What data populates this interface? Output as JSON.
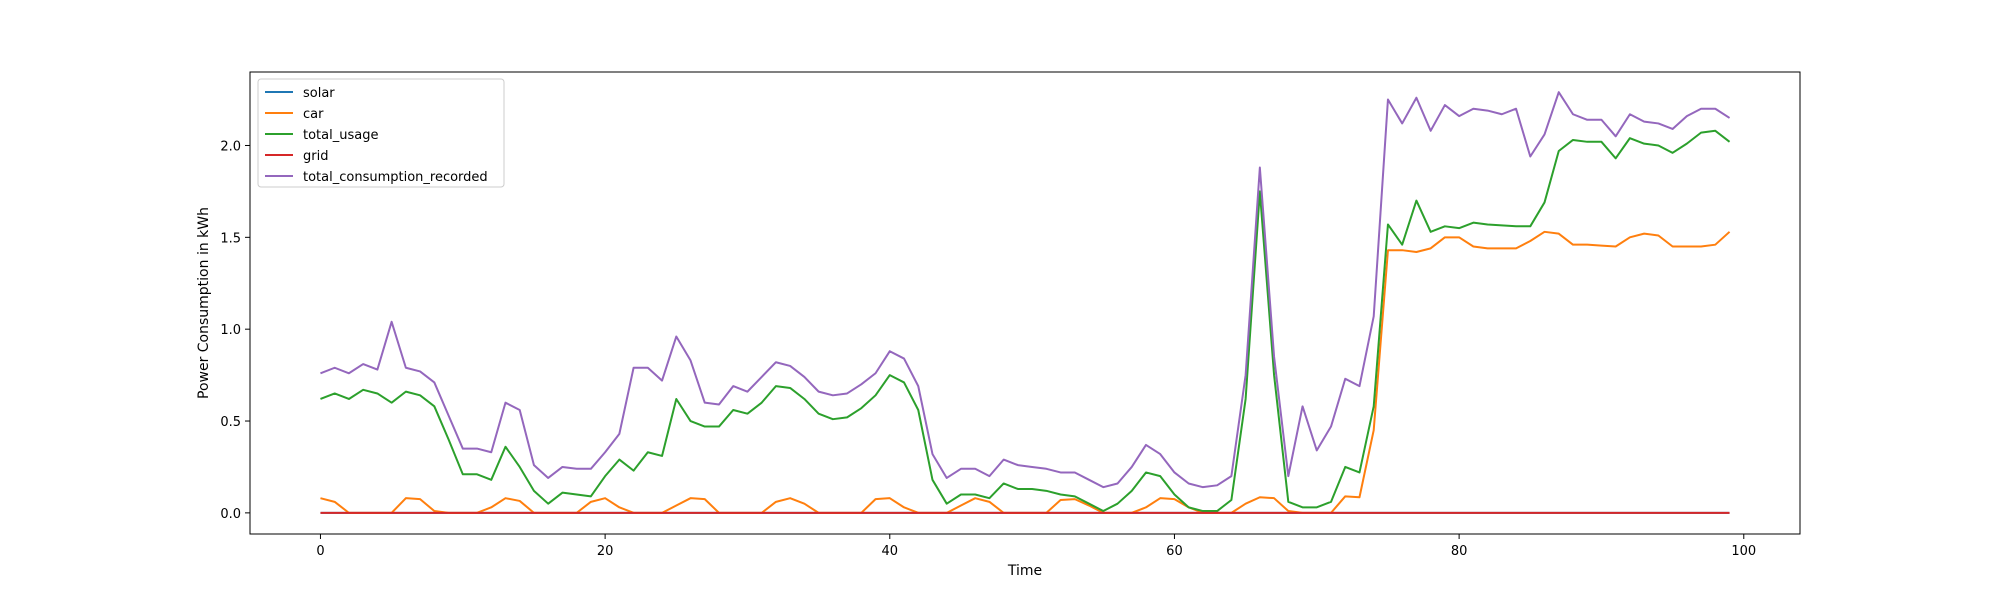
{
  "chart_data": {
    "type": "line",
    "title": "",
    "xlabel": "Time",
    "ylabel": "Power Consumption in kWh",
    "xlim": [
      -4.95,
      103.95
    ],
    "ylim": [
      -0.115,
      2.4
    ],
    "xticks": [
      0,
      20,
      40,
      60,
      80,
      100
    ],
    "yticks": [
      0.0,
      0.5,
      1.0,
      1.5,
      2.0
    ],
    "xtick_labels": [
      "0",
      "20",
      "40",
      "60",
      "80",
      "100"
    ],
    "ytick_labels": [
      "0.0",
      "0.5",
      "1.0",
      "1.5",
      "2.0"
    ],
    "grid": false,
    "legend_position": "upper-left",
    "x_start": 0,
    "series": [
      {
        "name": "solar",
        "color": "#1f77b4",
        "values": [
          0,
          0,
          0,
          0,
          0,
          0,
          0,
          0,
          0,
          0,
          0,
          0,
          0,
          0,
          0,
          0,
          0,
          0,
          0,
          0,
          0,
          0,
          0,
          0,
          0,
          0,
          0,
          0,
          0,
          0,
          0,
          0,
          0,
          0,
          0,
          0,
          0,
          0,
          0,
          0,
          0,
          0,
          0,
          0,
          0,
          0,
          0,
          0,
          0,
          0,
          0,
          0,
          0,
          0,
          0,
          0,
          0,
          0,
          0,
          0,
          0,
          0,
          0,
          0,
          0,
          0,
          0,
          0,
          0,
          0,
          0,
          0,
          0,
          0,
          0,
          0,
          0,
          0,
          0,
          0,
          0,
          0,
          0,
          0,
          0,
          0,
          0,
          0,
          0,
          0,
          0,
          0,
          0,
          0,
          0,
          0,
          0,
          0,
          0,
          0
        ]
      },
      {
        "name": "car",
        "color": "#ff7f0e",
        "values": [
          0.08,
          0.06,
          0,
          0,
          0,
          0,
          0.08,
          0.075,
          0.01,
          0,
          0,
          0,
          0.03,
          0.08,
          0.065,
          0,
          0,
          0,
          0,
          0.06,
          0.08,
          0.03,
          0,
          0,
          0,
          0.04,
          0.08,
          0.075,
          0,
          0,
          0,
          0,
          0.06,
          0.08,
          0.05,
          0,
          0,
          0,
          0,
          0.075,
          0.08,
          0.03,
          0,
          0,
          0,
          0.04,
          0.08,
          0.06,
          0,
          0,
          0,
          0,
          0.07,
          0.075,
          0.04,
          0,
          0,
          0,
          0.03,
          0.08,
          0.075,
          0.03,
          0,
          0,
          0,
          0.05,
          0.085,
          0.08,
          0.01,
          0,
          0,
          0,
          0.09,
          0.085,
          0.45,
          1.43,
          1.43,
          1.42,
          1.44,
          1.5,
          1.5,
          1.45,
          1.44,
          1.44,
          1.44,
          1.48,
          1.53,
          1.52,
          1.46,
          1.46,
          1.455,
          1.45,
          1.5,
          1.52,
          1.51,
          1.45,
          1.45,
          1.45,
          1.46,
          1.53
        ]
      },
      {
        "name": "total_usage",
        "color": "#2ca02c",
        "values": [
          0.62,
          0.65,
          0.62,
          0.67,
          0.65,
          0.6,
          0.66,
          0.64,
          0.58,
          0.4,
          0.21,
          0.21,
          0.18,
          0.36,
          0.25,
          0.12,
          0.05,
          0.11,
          0.1,
          0.09,
          0.2,
          0.29,
          0.23,
          0.33,
          0.31,
          0.62,
          0.5,
          0.47,
          0.47,
          0.56,
          0.54,
          0.6,
          0.69,
          0.68,
          0.62,
          0.54,
          0.51,
          0.52,
          0.57,
          0.64,
          0.75,
          0.71,
          0.56,
          0.18,
          0.05,
          0.1,
          0.1,
          0.08,
          0.16,
          0.13,
          0.13,
          0.12,
          0.1,
          0.09,
          0.05,
          0.01,
          0.05,
          0.12,
          0.22,
          0.2,
          0.1,
          0.03,
          0.01,
          0.01,
          0.07,
          0.62,
          1.75,
          0.75,
          0.06,
          0.03,
          0.03,
          0.06,
          0.25,
          0.22,
          0.58,
          1.57,
          1.46,
          1.7,
          1.53,
          1.56,
          1.55,
          1.58,
          1.57,
          1.565,
          1.56,
          1.56,
          1.69,
          1.97,
          2.03,
          2.02,
          2.02,
          1.93,
          2.04,
          2.01,
          2.0,
          1.96,
          2.01,
          2.07,
          2.08,
          2.02
        ]
      },
      {
        "name": "grid",
        "color": "#d62728",
        "values": [
          0,
          0,
          0,
          0,
          0,
          0,
          0,
          0,
          0,
          0,
          0,
          0,
          0,
          0,
          0,
          0,
          0,
          0,
          0,
          0,
          0,
          0,
          0,
          0,
          0,
          0,
          0,
          0,
          0,
          0,
          0,
          0,
          0,
          0,
          0,
          0,
          0,
          0,
          0,
          0,
          0,
          0,
          0,
          0,
          0,
          0,
          0,
          0,
          0,
          0,
          0,
          0,
          0,
          0,
          0,
          0,
          0,
          0,
          0,
          0,
          0,
          0,
          0,
          0,
          0,
          0,
          0,
          0,
          0,
          0,
          0,
          0,
          0,
          0,
          0,
          0,
          0,
          0,
          0,
          0,
          0,
          0,
          0,
          0,
          0,
          0,
          0,
          0,
          0,
          0,
          0,
          0,
          0,
          0,
          0,
          0,
          0,
          0,
          0,
          0
        ]
      },
      {
        "name": "total_consumption_recorded",
        "color": "#9467bd",
        "values": [
          0.76,
          0.79,
          0.76,
          0.81,
          0.78,
          1.04,
          0.79,
          0.77,
          0.71,
          0.53,
          0.35,
          0.35,
          0.33,
          0.6,
          0.56,
          0.26,
          0.19,
          0.25,
          0.24,
          0.24,
          0.33,
          0.43,
          0.79,
          0.79,
          0.72,
          0.96,
          0.83,
          0.6,
          0.59,
          0.69,
          0.66,
          0.74,
          0.82,
          0.8,
          0.74,
          0.66,
          0.64,
          0.65,
          0.7,
          0.76,
          0.88,
          0.84,
          0.69,
          0.32,
          0.19,
          0.24,
          0.24,
          0.2,
          0.29,
          0.26,
          0.25,
          0.24,
          0.22,
          0.22,
          0.18,
          0.14,
          0.16,
          0.25,
          0.37,
          0.32,
          0.22,
          0.16,
          0.14,
          0.15,
          0.2,
          0.75,
          1.88,
          0.85,
          0.2,
          0.58,
          0.34,
          0.47,
          0.73,
          0.69,
          1.07,
          2.25,
          2.12,
          2.26,
          2.08,
          2.22,
          2.16,
          2.2,
          2.19,
          2.17,
          2.2,
          1.94,
          2.06,
          2.29,
          2.17,
          2.14,
          2.14,
          2.05,
          2.17,
          2.13,
          2.12,
          2.09,
          2.16,
          2.2,
          2.2,
          2.15
        ]
      }
    ]
  }
}
